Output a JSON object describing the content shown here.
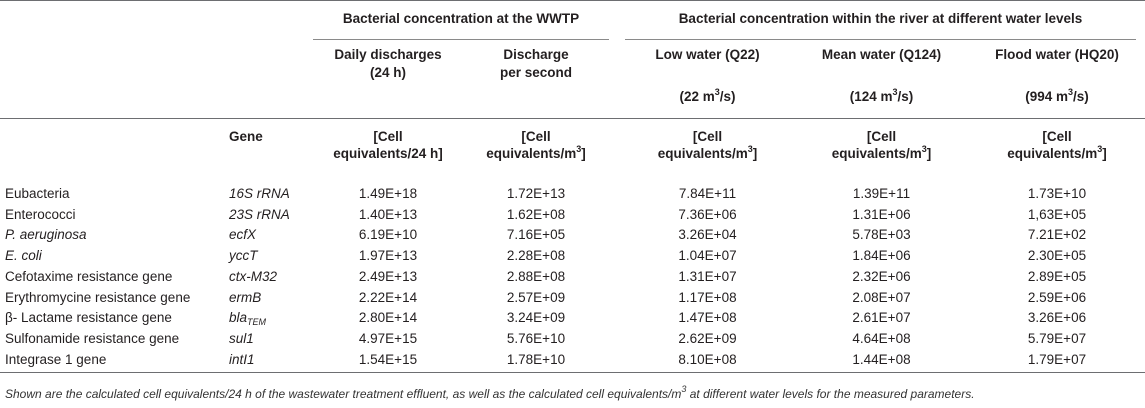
{
  "headers": {
    "group_wwtp": "Bacterial concentration at the WWTP",
    "group_river": "Bacterial concentration within the river at different water levels",
    "daily_line1": "Daily discharges",
    "daily_line2": "(24 h)",
    "persec_line1": "Discharge",
    "persec_line2": "per second",
    "low": "Low water (Q22)",
    "mean": "Mean water (Q124)",
    "flood": "Flood water (HQ20)",
    "low_flow": "(22 m",
    "mean_flow": "(124 m",
    "flood_flow": "(994 m",
    "flow_sup": "3",
    "flow_unit_end": "/s)",
    "gene": "Gene",
    "unit_open": "[Cell",
    "unit_daily": "equivalents/24 h]",
    "unit_m3_pre": "equivalents/m",
    "unit_m3_sup": "3",
    "unit_m3_end": "]"
  },
  "rows": [
    {
      "name": "Eubacteria",
      "gene": "16S rRNA",
      "gene_sub": "",
      "daily": "1.49E+18",
      "persec": "1.72E+13",
      "low": "7.84E+11",
      "mean": "1.39E+11",
      "flood": "1.73E+10"
    },
    {
      "name": "Enterococci",
      "gene": "23S rRNA",
      "gene_sub": "",
      "daily": "1.40E+13",
      "persec": "1.62E+08",
      "low": "7.36E+06",
      "mean": "1.31E+06",
      "flood": "1,63E+05"
    },
    {
      "name": "P. aeruginosa",
      "gene": "ecfX",
      "gene_sub": "",
      "daily": "6.19E+10",
      "persec": "7.16E+05",
      "low": "3.26E+04",
      "mean": "5.78E+03",
      "flood": "7.21E+02"
    },
    {
      "name": "E. coli",
      "gene": "yccT",
      "gene_sub": "",
      "daily": "1.97E+13",
      "persec": "2.28E+08",
      "low": "1.04E+07",
      "mean": "1.84E+06",
      "flood": "2.30E+05"
    },
    {
      "name": "Cefotaxime resistance gene",
      "gene": "ctx-M32",
      "gene_sub": "",
      "daily": "2.49E+13",
      "persec": "2.88E+08",
      "low": "1.31E+07",
      "mean": "2.32E+06",
      "flood": "2.89E+05"
    },
    {
      "name": "Erythromycine resistance gene",
      "gene": "ermB",
      "gene_sub": "",
      "daily": "2.22E+14",
      "persec": "2.57E+09",
      "low": "1.17E+08",
      "mean": "2.08E+07",
      "flood": "2.59E+06"
    },
    {
      "name": "β- Lactame resistance gene",
      "gene": "bla",
      "gene_sub": "TEM",
      "daily": "2.80E+14",
      "persec": "3.24E+09",
      "low": "1.47E+08",
      "mean": "2.61E+07",
      "flood": "3.26E+06"
    },
    {
      "name": "Sulfonamide resistance gene",
      "gene": "sul1",
      "gene_sub": "",
      "daily": "4.97E+15",
      "persec": "5.76E+10",
      "low": "2.62E+09",
      "mean": "4.64E+08",
      "flood": "5.79E+07"
    },
    {
      "name": "Integrase 1 gene",
      "gene": "intI1",
      "gene_sub": "",
      "daily": "1.54E+15",
      "persec": "1.78E+10",
      "low": "8.10E+08",
      "mean": "1.44E+08",
      "flood": "1.79E+07"
    }
  ],
  "footnote_pre": "Shown are the calculated cell equivalents/24 h of the wastewater treatment effluent, as well as the calculated cell equivalents/m",
  "footnote_sup": "3",
  "footnote_post": " at different water levels for the measured parameters."
}
